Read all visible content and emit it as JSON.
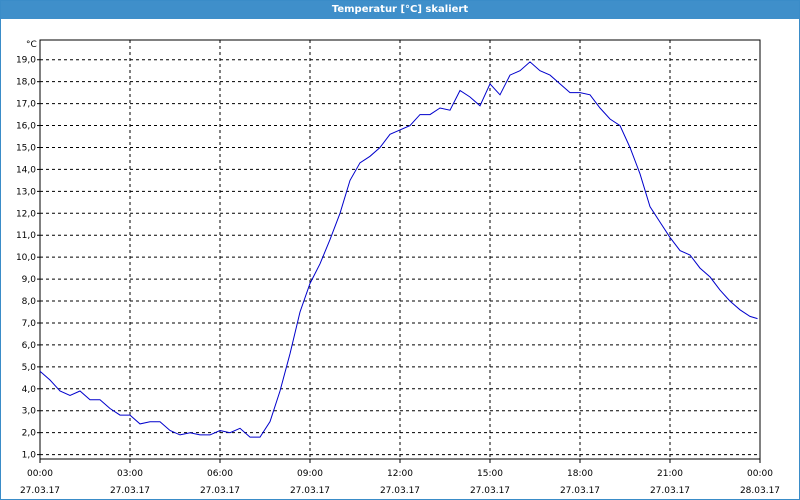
{
  "window": {
    "title": "Temperatur [°C] skaliert"
  },
  "chart_data": {
    "type": "line",
    "title": "Temperatur [°C] skaliert",
    "ylabel": "°C",
    "xlabel": "",
    "grid": true,
    "xlim": [
      "27.03.17 00:00",
      "28.03.17 00:00"
    ],
    "ylim": [
      0.8,
      19.9
    ],
    "yticks": [
      "1,0",
      "2,0",
      "3,0",
      "4,0",
      "5,0",
      "6,0",
      "7,0",
      "8,0",
      "9,0",
      "10,0",
      "11,0",
      "12,0",
      "13,0",
      "14,0",
      "15,0",
      "16,0",
      "17,0",
      "18,0",
      "19,0"
    ],
    "xticks": [
      {
        "time": "00:00",
        "date": "27.03.17"
      },
      {
        "time": "03:00",
        "date": "27.03.17"
      },
      {
        "time": "06:00",
        "date": "27.03.17"
      },
      {
        "time": "09:00",
        "date": "27.03.17"
      },
      {
        "time": "12:00",
        "date": "27.03.17"
      },
      {
        "time": "15:00",
        "date": "27.03.17"
      },
      {
        "time": "18:00",
        "date": "27.03.17"
      },
      {
        "time": "21:00",
        "date": "27.03.17"
      },
      {
        "time": "00:00",
        "date": "28.03.17"
      }
    ],
    "series": [
      {
        "color": "#0000cc",
        "x": [
          "00:00",
          "00:20",
          "00:40",
          "01:00",
          "01:20",
          "01:40",
          "02:00",
          "02:20",
          "02:40",
          "03:00",
          "03:20",
          "03:40",
          "04:00",
          "04:20",
          "04:40",
          "05:00",
          "05:20",
          "05:40",
          "06:00",
          "06:20",
          "06:40",
          "07:00",
          "07:20",
          "07:40",
          "08:00",
          "08:20",
          "08:40",
          "09:00",
          "09:20",
          "09:40",
          "10:00",
          "10:20",
          "10:40",
          "11:00",
          "11:20",
          "11:40",
          "12:00",
          "12:20",
          "12:40",
          "13:00",
          "13:20",
          "13:40",
          "14:00",
          "14:20",
          "14:40",
          "15:00",
          "15:20",
          "15:40",
          "16:00",
          "16:20",
          "16:40",
          "17:00",
          "17:20",
          "17:40",
          "18:00",
          "18:20",
          "18:40",
          "19:00",
          "19:20",
          "19:40",
          "20:00",
          "20:20",
          "20:40",
          "21:00",
          "21:20",
          "21:40",
          "22:00",
          "22:20",
          "22:40",
          "23:00",
          "23:20",
          "23:40",
          "23:55"
        ],
        "values": [
          4.8,
          4.4,
          3.9,
          3.7,
          3.9,
          3.5,
          3.5,
          3.1,
          2.8,
          2.8,
          2.4,
          2.5,
          2.5,
          2.1,
          1.9,
          2.0,
          1.9,
          1.9,
          2.1,
          2.0,
          2.2,
          1.8,
          1.8,
          2.5,
          3.9,
          5.6,
          7.5,
          8.8,
          9.7,
          10.8,
          12.0,
          13.5,
          14.3,
          14.6,
          15.0,
          15.6,
          15.8,
          16.0,
          16.5,
          16.5,
          16.8,
          16.7,
          17.6,
          17.3,
          16.9,
          17.9,
          17.4,
          18.3,
          18.5,
          18.9,
          18.5,
          18.3,
          17.9,
          17.5,
          17.5,
          17.4,
          16.8,
          16.3,
          16.0,
          15.0,
          13.8,
          12.3,
          11.6,
          10.9,
          10.3,
          10.1,
          9.5,
          9.1,
          8.5,
          8.0,
          7.6,
          7.3,
          7.2
        ]
      }
    ]
  }
}
